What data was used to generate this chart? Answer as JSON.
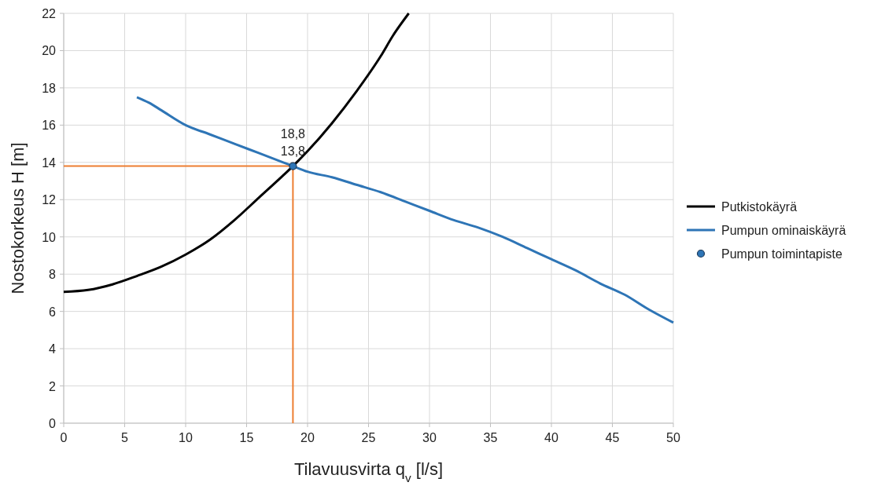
{
  "chart_data": {
    "type": "line",
    "xlabel": "Tilavuusvirta q$_{v}$ [l/s]",
    "ylabel": "Nostokorkeus H [m]",
    "xlim": [
      0,
      50
    ],
    "xticks": [
      0,
      5,
      10,
      15,
      20,
      25,
      30,
      35,
      40,
      45,
      50
    ],
    "ylim": [
      0,
      22
    ],
    "yticks": [
      0,
      2,
      4,
      6,
      8,
      10,
      12,
      14,
      16,
      18,
      20,
      22
    ],
    "grid": true,
    "legend": "right",
    "series": [
      {
        "name": "Putkistokäyrä",
        "color": "#000000",
        "marker": "none",
        "x": [
          0,
          2,
          4,
          6,
          8,
          10,
          12,
          14,
          16,
          18,
          18.8,
          20,
          22,
          24,
          26,
          27,
          28.3
        ],
        "values": [
          7.05,
          7.15,
          7.45,
          7.9,
          8.4,
          9.05,
          9.85,
          10.9,
          12.1,
          13.3,
          13.8,
          14.6,
          16.1,
          17.8,
          19.7,
          20.8,
          22
        ]
      },
      {
        "name": "Pumpun ominaiskäyrä",
        "color": "#2e75b6",
        "marker": "none",
        "x": [
          6,
          7,
          8,
          10,
          12,
          14,
          16,
          18,
          18.8,
          20,
          22,
          24,
          26,
          28,
          30,
          32,
          34,
          36,
          38,
          40,
          42,
          44,
          46,
          48,
          50
        ],
        "values": [
          17.5,
          17.2,
          16.8,
          16.0,
          15.5,
          15.0,
          14.5,
          14.0,
          13.8,
          13.5,
          13.2,
          12.8,
          12.4,
          11.9,
          11.4,
          10.9,
          10.5,
          10.0,
          9.4,
          8.8,
          8.2,
          7.5,
          6.9,
          6.1,
          5.4
        ]
      },
      {
        "name": "Pumpun toimintapiste",
        "type": "scatter",
        "color": "#2e75b6",
        "marker": "circle",
        "x": [
          18.8
        ],
        "values": [
          13.8
        ]
      }
    ],
    "ref_lines": [
      {
        "axis": "x",
        "value": 18.8,
        "color": "#ed7d31"
      },
      {
        "axis": "y",
        "value": 13.8,
        "color": "#ed7d31"
      }
    ],
    "annotations": [
      {
        "text": "18,8\n13,8",
        "x": 18.8,
        "y": 13.8
      }
    ]
  }
}
